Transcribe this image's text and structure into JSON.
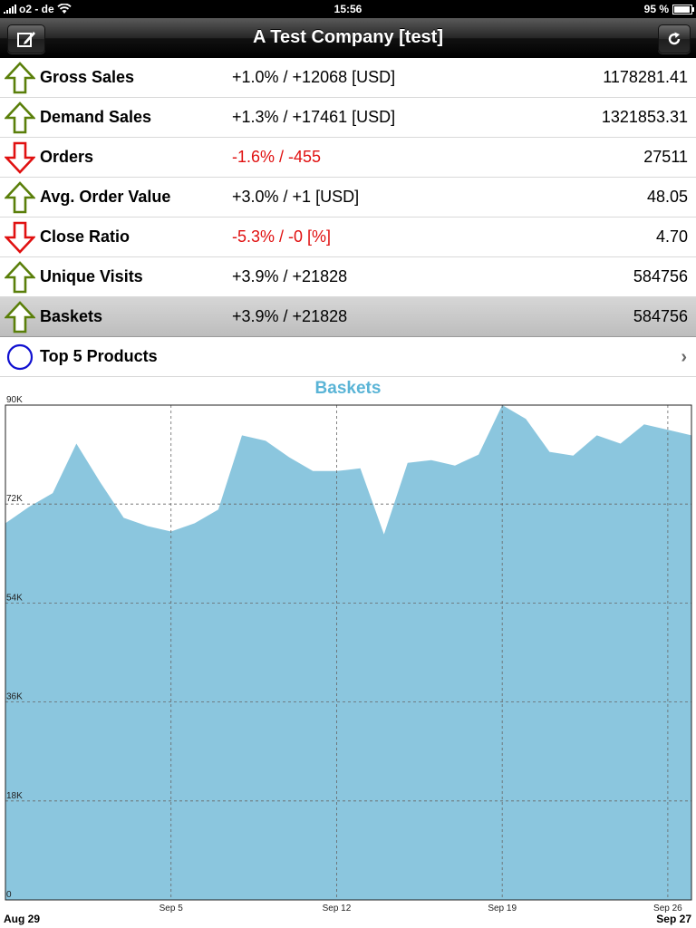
{
  "status_bar": {
    "carrier": "o2 - de",
    "time": "15:56",
    "battery": "95 %",
    "battery_level": 0.95
  },
  "navbar": {
    "title": "A Test Company [test]",
    "left_icon": "compose-icon",
    "right_icon": "refresh-icon"
  },
  "colors": {
    "up": "#5a7f0a",
    "down": "#e01010",
    "neutral": "#1010d0",
    "chart_fill": "#8bc6de",
    "chart_title": "#5ab4d6"
  },
  "metrics": [
    {
      "trend": "up",
      "label": "Gross Sales",
      "change": "+1.0% / +12068 [USD]",
      "value": "1178281.41"
    },
    {
      "trend": "up",
      "label": "Demand Sales",
      "change": "+1.3% / +17461 [USD]",
      "value": "1321853.31"
    },
    {
      "trend": "down",
      "label": "Orders",
      "change": "-1.6% / -455",
      "value": "27511"
    },
    {
      "trend": "up",
      "label": "Avg. Order Value",
      "change": "+3.0% / +1 [USD]",
      "value": "48.05"
    },
    {
      "trend": "down",
      "label": "Close Ratio",
      "change": "-5.3% / -0 [%]",
      "value": "4.70"
    },
    {
      "trend": "up",
      "label": "Unique Visits",
      "change": "+3.9% / +21828",
      "value": "584756"
    },
    {
      "trend": "up",
      "label": "Baskets",
      "change": "+3.9% / +21828",
      "value": "584756",
      "selected": true
    }
  ],
  "top_products": {
    "label": "Top 5 Products",
    "icon": "circle-icon"
  },
  "chart_data": {
    "type": "area",
    "title": "Baskets",
    "x_ticks": [
      "Sep 5",
      "Sep 12",
      "Sep 19",
      "Sep 26"
    ],
    "x_start_label": "Aug 29",
    "x_end_label": "Sep 27",
    "y_ticks": [
      "0",
      "18K",
      "36K",
      "54K",
      "72K",
      "90K"
    ],
    "ylim": [
      0,
      90000
    ],
    "grid": true,
    "x": [
      "Aug 29",
      "Aug 30",
      "Aug 31",
      "Sep 1",
      "Sep 2",
      "Sep 3",
      "Sep 4",
      "Sep 5",
      "Sep 6",
      "Sep 7",
      "Sep 8",
      "Sep 9",
      "Sep 10",
      "Sep 11",
      "Sep 12",
      "Sep 13",
      "Sep 14",
      "Sep 15",
      "Sep 16",
      "Sep 17",
      "Sep 18",
      "Sep 19",
      "Sep 20",
      "Sep 21",
      "Sep 22",
      "Sep 23",
      "Sep 24",
      "Sep 25",
      "Sep 26",
      "Sep 27"
    ],
    "values": [
      68500,
      71500,
      74000,
      83000,
      76000,
      69500,
      68000,
      67000,
      68500,
      71000,
      84500,
      83500,
      80500,
      78000,
      78000,
      78500,
      66500,
      79500,
      80000,
      79000,
      81000,
      90000,
      87500,
      81500,
      80800,
      84500,
      83000,
      86500,
      85500,
      84500
    ]
  }
}
